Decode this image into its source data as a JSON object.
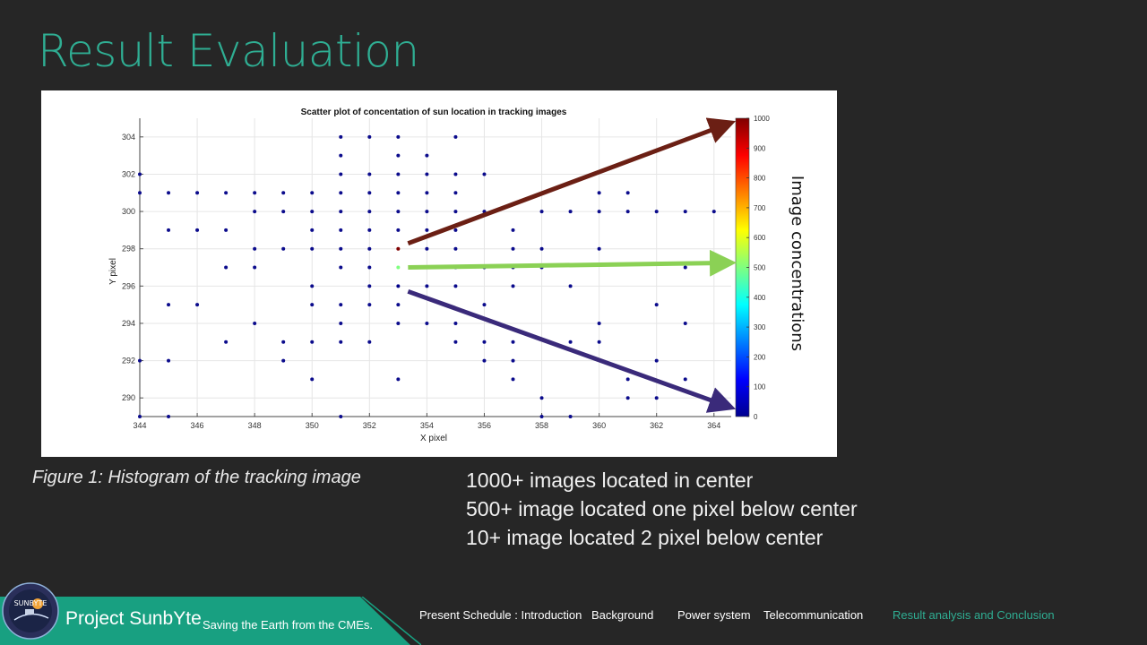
{
  "slide": {
    "title": "Result Evaluation",
    "caption": "Figure 1: Histogram of the tracking image",
    "notes": [
      "1000+ images located in center",
      "500+ image located one pixel below center",
      "10+ image located 2 pixel below center"
    ],
    "colorbar_label": "Image concentrations"
  },
  "footer": {
    "project": "Project SunbYte",
    "tagline": "Saving the Earth from the CMEs.",
    "logo_text": "SUNBYTE",
    "nav": [
      {
        "label": "Present Schedule : Introduction",
        "active": false
      },
      {
        "label": "Background",
        "active": false
      },
      {
        "label": "Power system",
        "active": false
      },
      {
        "label": "Telecommunication",
        "active": false
      },
      {
        "label": "Result analysis and Conclusion",
        "active": true
      }
    ]
  },
  "colors": {
    "accent": "#2fae93",
    "background": "#262626",
    "point": "#0b0b8c",
    "arrow_high": "#6b1f14",
    "arrow_mid": "#8bd155",
    "arrow_low": "#3a2a7a"
  },
  "chart_data": {
    "type": "scatter",
    "title": "Scatter plot of concentation of sun location in tracking images",
    "xlabel": "X pixel",
    "ylabel": "Y pixel",
    "xlim": [
      344,
      364.6
    ],
    "ylim": [
      289,
      305
    ],
    "xticks": [
      344,
      346,
      348,
      350,
      352,
      354,
      356,
      358,
      360,
      362,
      364
    ],
    "yticks": [
      290,
      292,
      294,
      296,
      298,
      300,
      302,
      304
    ],
    "grid": true,
    "colorbar": {
      "min": 0,
      "max": 1000,
      "ticks": [
        0,
        100,
        200,
        300,
        400,
        500,
        600,
        700,
        800,
        900,
        1000
      ],
      "colormap": "jet"
    },
    "points": [
      [
        344,
        302
      ],
      [
        344,
        301
      ],
      [
        344,
        292
      ],
      [
        344,
        289
      ],
      [
        345,
        301
      ],
      [
        345,
        299
      ],
      [
        345,
        295
      ],
      [
        345,
        292
      ],
      [
        345,
        289
      ],
      [
        346,
        301
      ],
      [
        346,
        299
      ],
      [
        346,
        295
      ],
      [
        347,
        301
      ],
      [
        347,
        299
      ],
      [
        347,
        297
      ],
      [
        347,
        293
      ],
      [
        348,
        301
      ],
      [
        348,
        300
      ],
      [
        348,
        298
      ],
      [
        348,
        297
      ],
      [
        348,
        294
      ],
      [
        349,
        301
      ],
      [
        349,
        300
      ],
      [
        349,
        298
      ],
      [
        349,
        293
      ],
      [
        349,
        292
      ],
      [
        350,
        301
      ],
      [
        350,
        300
      ],
      [
        350,
        299
      ],
      [
        350,
        298
      ],
      [
        350,
        296
      ],
      [
        350,
        295
      ],
      [
        350,
        293
      ],
      [
        350,
        291
      ],
      [
        351,
        304
      ],
      [
        351,
        303
      ],
      [
        351,
        302
      ],
      [
        351,
        301
      ],
      [
        351,
        300
      ],
      [
        351,
        299
      ],
      [
        351,
        298
      ],
      [
        351,
        297
      ],
      [
        351,
        295
      ],
      [
        351,
        294
      ],
      [
        351,
        293
      ],
      [
        351,
        289
      ],
      [
        352,
        304
      ],
      [
        352,
        302
      ],
      [
        352,
        301
      ],
      [
        352,
        300
      ],
      [
        352,
        299
      ],
      [
        352,
        298
      ],
      [
        352,
        297
      ],
      [
        352,
        296
      ],
      [
        352,
        295
      ],
      [
        352,
        293
      ],
      [
        353,
        304
      ],
      [
        353,
        303
      ],
      [
        353,
        302
      ],
      [
        353,
        301
      ],
      [
        353,
        300
      ],
      [
        353,
        299
      ],
      [
        353,
        296
      ],
      [
        353,
        295
      ],
      [
        353,
        294
      ],
      [
        353,
        291
      ],
      [
        354,
        303
      ],
      [
        354,
        302
      ],
      [
        354,
        301
      ],
      [
        354,
        300
      ],
      [
        354,
        299
      ],
      [
        354,
        298
      ],
      [
        354,
        297
      ],
      [
        354,
        296
      ],
      [
        354,
        294
      ],
      [
        355,
        304
      ],
      [
        355,
        302
      ],
      [
        355,
        301
      ],
      [
        355,
        300
      ],
      [
        355,
        299
      ],
      [
        355,
        298
      ],
      [
        355,
        297
      ],
      [
        355,
        296
      ],
      [
        355,
        294
      ],
      [
        355,
        293
      ],
      [
        356,
        302
      ],
      [
        356,
        300
      ],
      [
        356,
        297
      ],
      [
        356,
        295
      ],
      [
        356,
        293
      ],
      [
        356,
        292
      ],
      [
        357,
        299
      ],
      [
        357,
        298
      ],
      [
        357,
        297
      ],
      [
        357,
        296
      ],
      [
        357,
        293
      ],
      [
        357,
        292
      ],
      [
        357,
        291
      ],
      [
        358,
        300
      ],
      [
        358,
        298
      ],
      [
        358,
        297
      ],
      [
        358,
        290
      ],
      [
        358,
        289
      ],
      [
        359,
        300
      ],
      [
        359,
        296
      ],
      [
        359,
        293
      ],
      [
        359,
        289
      ],
      [
        360,
        301
      ],
      [
        360,
        300
      ],
      [
        360,
        298
      ],
      [
        360,
        294
      ],
      [
        360,
        293
      ],
      [
        361,
        301
      ],
      [
        361,
        300
      ],
      [
        361,
        291
      ],
      [
        361,
        290
      ],
      [
        362,
        300
      ],
      [
        362,
        295
      ],
      [
        362,
        292
      ],
      [
        362,
        290
      ],
      [
        363,
        300
      ],
      [
        363,
        297
      ],
      [
        363,
        294
      ],
      [
        363,
        291
      ],
      [
        364,
        300
      ]
    ],
    "highlighted_points": [
      {
        "x": 353,
        "y": 298,
        "value": 1000
      },
      {
        "x": 353,
        "y": 297,
        "value": 500
      },
      {
        "x": 353,
        "y": 296,
        "value": 10
      }
    ]
  }
}
